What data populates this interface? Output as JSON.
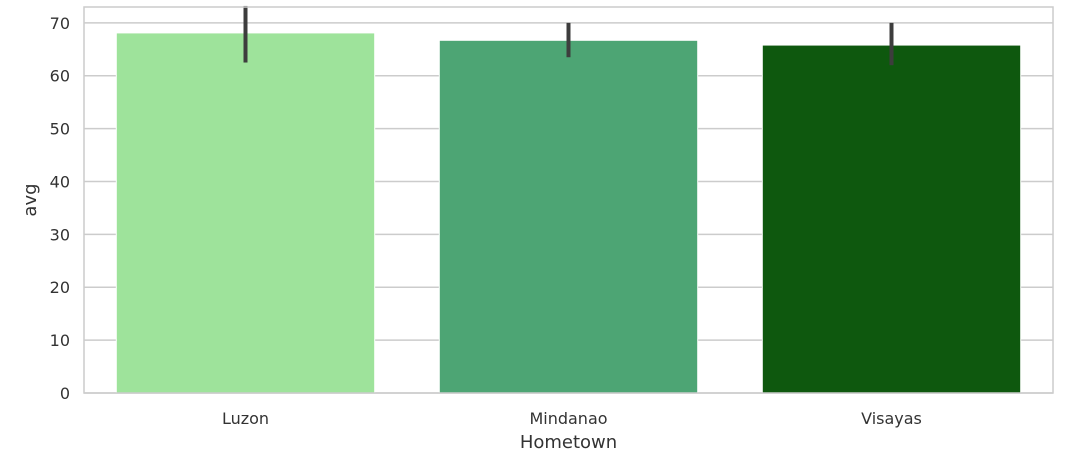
{
  "chart_data": {
    "type": "bar",
    "title": "",
    "xlabel": "Hometown",
    "ylabel": "avg",
    "categories": [
      "Luzon",
      "Mindanao",
      "Visayas"
    ],
    "values": [
      68.1,
      66.7,
      65.8
    ],
    "error_bars": [
      {
        "low": 62.5,
        "high": 73.2
      },
      {
        "low": 63.5,
        "high": 70.0
      },
      {
        "low": 62.0,
        "high": 70.0
      }
    ],
    "bar_colors": [
      "#9ee39b",
      "#4da574",
      "#0e580e"
    ],
    "error_bar_color": "#3d3d3d",
    "ylim": [
      0,
      73
    ],
    "yticks": [
      0,
      10,
      20,
      30,
      40,
      50,
      60,
      70
    ],
    "grid": "horizontal",
    "grid_color": "#cccccc",
    "frame_color": "#cccccc",
    "background": "#ffffff"
  }
}
